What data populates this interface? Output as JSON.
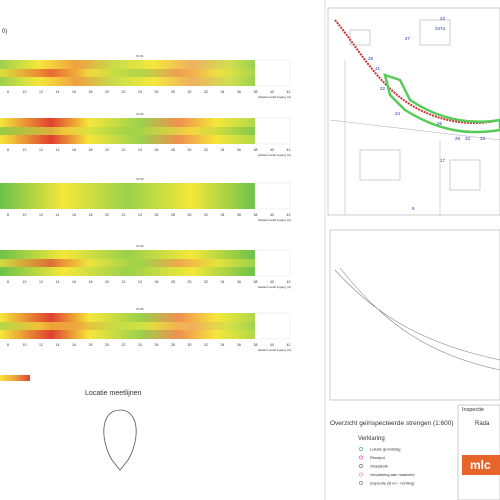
{
  "header": {
    "corner": "0)"
  },
  "strips": [
    {
      "label": "ID 01",
      "axis": "afstand vanaf ingang (m)"
    },
    {
      "label": "ID 02",
      "axis": "afstand vanaf ingang (m)"
    },
    {
      "label": "ID 03",
      "axis": "afstand vanaf ingang (m)"
    },
    {
      "label": "ID 04",
      "axis": "afstand vanaf ingang (m)"
    },
    {
      "label": "ID 05",
      "axis": "afstand vanaf ingang (m)"
    }
  ],
  "ticks": [
    "8",
    "10",
    "12",
    "14",
    "16",
    "18",
    "20",
    "22",
    "24",
    "26",
    "28",
    "30",
    "32",
    "34",
    "36",
    "38",
    "40",
    "42"
  ],
  "profile": {
    "title": "Locatie meetlijnen"
  },
  "map": {
    "labels": [
      "347a",
      "23",
      "27",
      "29",
      "31",
      "22",
      "24",
      "26",
      "28",
      "32",
      "33",
      "17",
      "5"
    ]
  },
  "overview": {
    "title": "Overzicht geïnspecteerde strengen (1:600)"
  },
  "legend": {
    "title": "Verklaring",
    "items": [
      "Lokale grondslag",
      "Rioolput",
      "Straatkolk",
      "Verzakking aan maaiveld",
      "Inspectie (B en - richting)"
    ]
  },
  "titleblock": {
    "title": "Inspectie",
    "subtitle": "Rada",
    "logo": "mlc"
  }
}
